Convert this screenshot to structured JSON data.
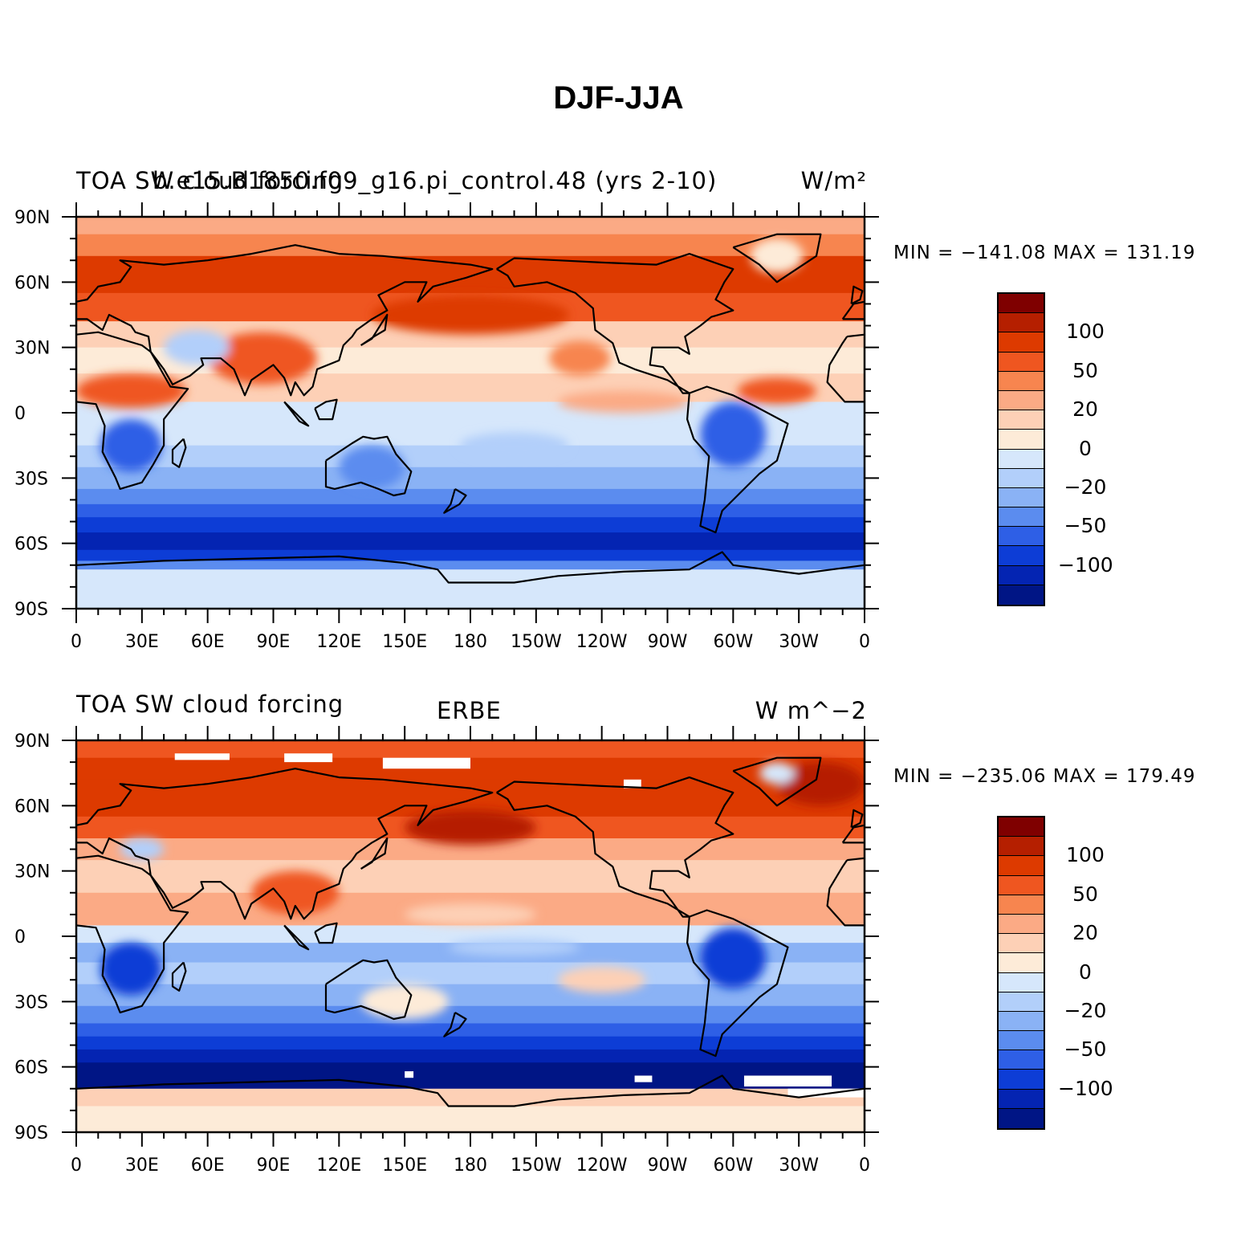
{
  "figure_title": "DJF-JJA",
  "panels": [
    {
      "left_title": "TOA SW cloud forcing",
      "center_title": "b.e15.B1850.f09_g16.pi_control.48 (yrs 2-10)",
      "right_title": "W/m²",
      "min_label": "MIN = −141.08",
      "max_label": "MAX = 131.19",
      "variant": "model"
    },
    {
      "left_title": "TOA SW cloud forcing",
      "center_title": "ERBE",
      "right_title": "W m^−2",
      "min_label": "MIN = −235.06",
      "max_label": "MAX = 179.49",
      "variant": "obs"
    }
  ],
  "lat_ticks": [
    "90N",
    "60N",
    "30N",
    "0",
    "30S",
    "60S",
    "90S"
  ],
  "lon_ticks": [
    "0",
    "30E",
    "60E",
    "90E",
    "120E",
    "150E",
    "180",
    "150W",
    "120W",
    "90W",
    "60W",
    "30W",
    "0"
  ],
  "colorbar": {
    "colors_top_to_bottom": [
      "#7f0000",
      "#b51f00",
      "#dd3a00",
      "#ef5620",
      "#f7854f",
      "#fbaa85",
      "#fdd0b6",
      "#fdebd8",
      "#d6e7fb",
      "#b2cffa",
      "#8ab2f5",
      "#5b8cef",
      "#2e5fe6",
      "#0d3dd6",
      "#0424b2",
      "#001585"
    ],
    "labels": [
      "100",
      "50",
      "20",
      "0",
      "−20",
      "−50",
      "−100"
    ]
  },
  "chart_data": {
    "type": "map",
    "projection": "cylindrical equidistant",
    "variable": "TOA SW cloud forcing",
    "units": "W/m²",
    "contour_levels": [
      -120,
      -100,
      -80,
      -50,
      -30,
      -20,
      -10,
      0,
      10,
      20,
      30,
      50,
      80,
      100,
      120
    ],
    "panels": [
      {
        "dataset": "b.e15.B1850.f09_g16.pi_control.48 (yrs 2-10)",
        "min": -141.08,
        "max": 131.19
      },
      {
        "dataset": "ERBE",
        "min": -235.06,
        "max": 179.49
      }
    ]
  }
}
